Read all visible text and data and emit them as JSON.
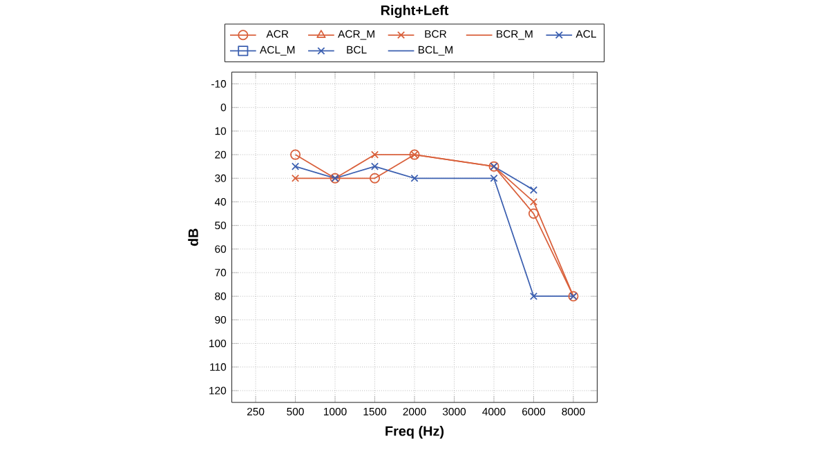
{
  "chart_data": {
    "type": "line",
    "title": "Right+Left",
    "xlabel": "Freq (Hz)",
    "ylabel": "dB",
    "categories": [
      "250",
      "500",
      "1000",
      "1500",
      "2000",
      "3000",
      "4000",
      "6000",
      "8000"
    ],
    "series": [
      {
        "name": "ACR",
        "color": "#d9603b",
        "marker": "circle",
        "values": [
          null,
          20,
          30,
          30,
          20,
          null,
          25,
          45,
          80
        ]
      },
      {
        "name": "ACR_M",
        "color": "#d9603b",
        "marker": "triangle",
        "values": [
          null,
          null,
          null,
          null,
          null,
          null,
          null,
          null,
          null
        ]
      },
      {
        "name": "BCR",
        "color": "#d9603b",
        "marker": "cross",
        "values": [
          null,
          30,
          30,
          20,
          20,
          null,
          25,
          40,
          80
        ]
      },
      {
        "name": "BCR_M",
        "color": "#d9603b",
        "marker": "none",
        "values": [
          null,
          null,
          null,
          null,
          null,
          null,
          null,
          null,
          null
        ]
      },
      {
        "name": "ACL",
        "color": "#3b5fb0",
        "marker": "cross",
        "values": [
          null,
          25,
          30,
          25,
          30,
          null,
          30,
          80,
          80
        ]
      },
      {
        "name": "ACL_M",
        "color": "#3b5fb0",
        "marker": "square",
        "values": [
          null,
          null,
          null,
          null,
          null,
          null,
          null,
          null,
          null
        ]
      },
      {
        "name": "BCL",
        "color": "#3b5fb0",
        "marker": "cross",
        "values": [
          null,
          null,
          null,
          null,
          null,
          null,
          25,
          35,
          null
        ]
      },
      {
        "name": "BCL_M",
        "color": "#3b5fb0",
        "marker": "none",
        "values": [
          null,
          null,
          null,
          null,
          null,
          null,
          null,
          null,
          null
        ]
      }
    ],
    "ylim": [
      125,
      -15
    ],
    "yticks": [
      -10,
      0,
      10,
      20,
      30,
      40,
      50,
      60,
      70,
      80,
      90,
      100,
      110,
      120
    ],
    "grid": true,
    "legend": "top"
  }
}
